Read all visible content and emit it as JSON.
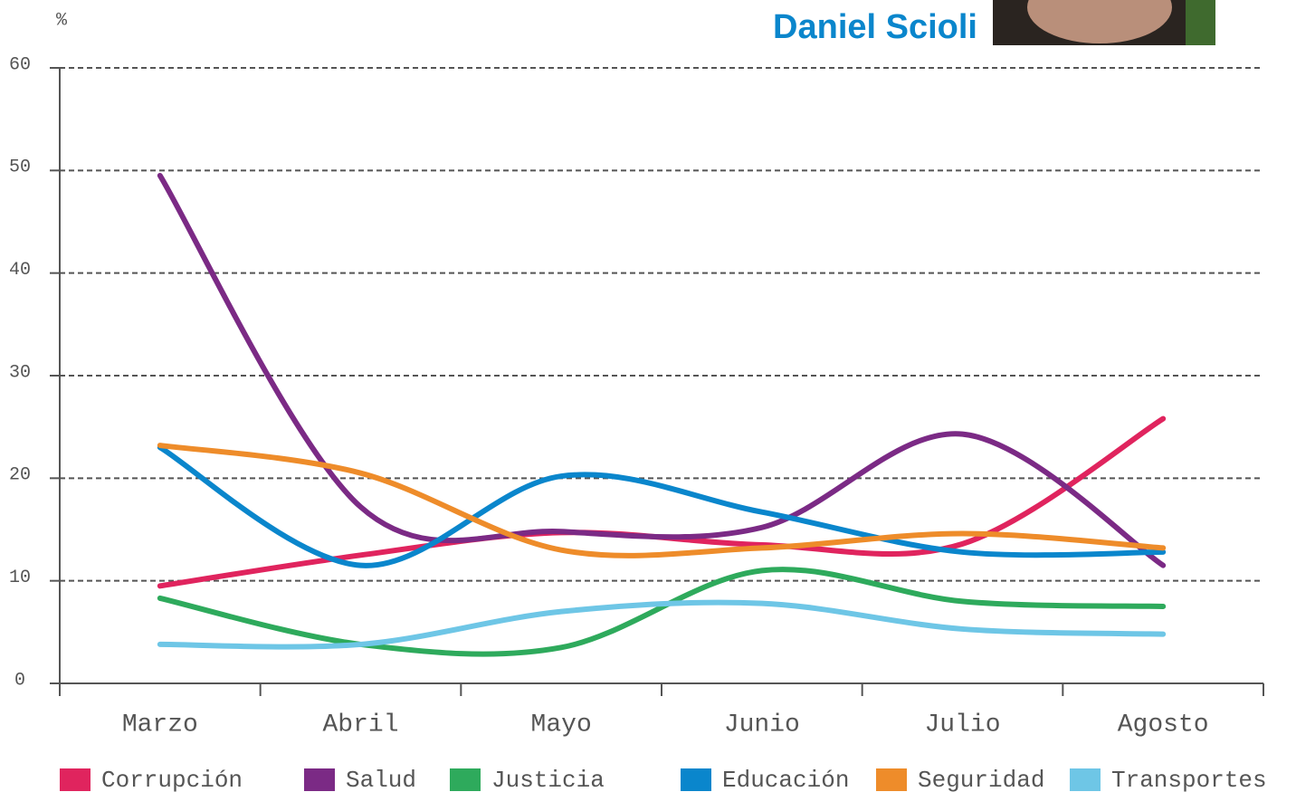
{
  "chart_data": {
    "type": "line",
    "title": "Daniel Scioli",
    "ylabel": "%",
    "categories": [
      "Marzo",
      "Abril",
      "Mayo",
      "Junio",
      "Julio",
      "Agosto"
    ],
    "series": [
      {
        "name": "Corrupción",
        "color": "#e0245e",
        "values": [
          9.5,
          12.5,
          14.7,
          13.5,
          13.6,
          25.8
        ]
      },
      {
        "name": "Salud",
        "color": "#7b2a85",
        "values": [
          49.5,
          17.2,
          14.8,
          15.2,
          24.3,
          11.5
        ]
      },
      {
        "name": "Justicia",
        "color": "#2eaa5c",
        "values": [
          8.3,
          3.8,
          3.5,
          11,
          8,
          7.5
        ]
      },
      {
        "name": "Educación",
        "color": "#0a86cc",
        "values": [
          23,
          11.5,
          20.2,
          16.7,
          12.8,
          12.8
        ]
      },
      {
        "name": "Seguridad",
        "color": "#ee8c2a",
        "values": [
          23.2,
          20.5,
          13,
          13.2,
          14.6,
          13.2
        ]
      },
      {
        "name": "Transportes",
        "color": "#6ec6e6",
        "values": [
          3.8,
          3.8,
          7,
          7.8,
          5.3,
          4.8
        ]
      }
    ],
    "ylim": [
      0,
      60
    ],
    "yticks": [
      0,
      10,
      20,
      30,
      40,
      50,
      60
    ],
    "grid": true
  }
}
